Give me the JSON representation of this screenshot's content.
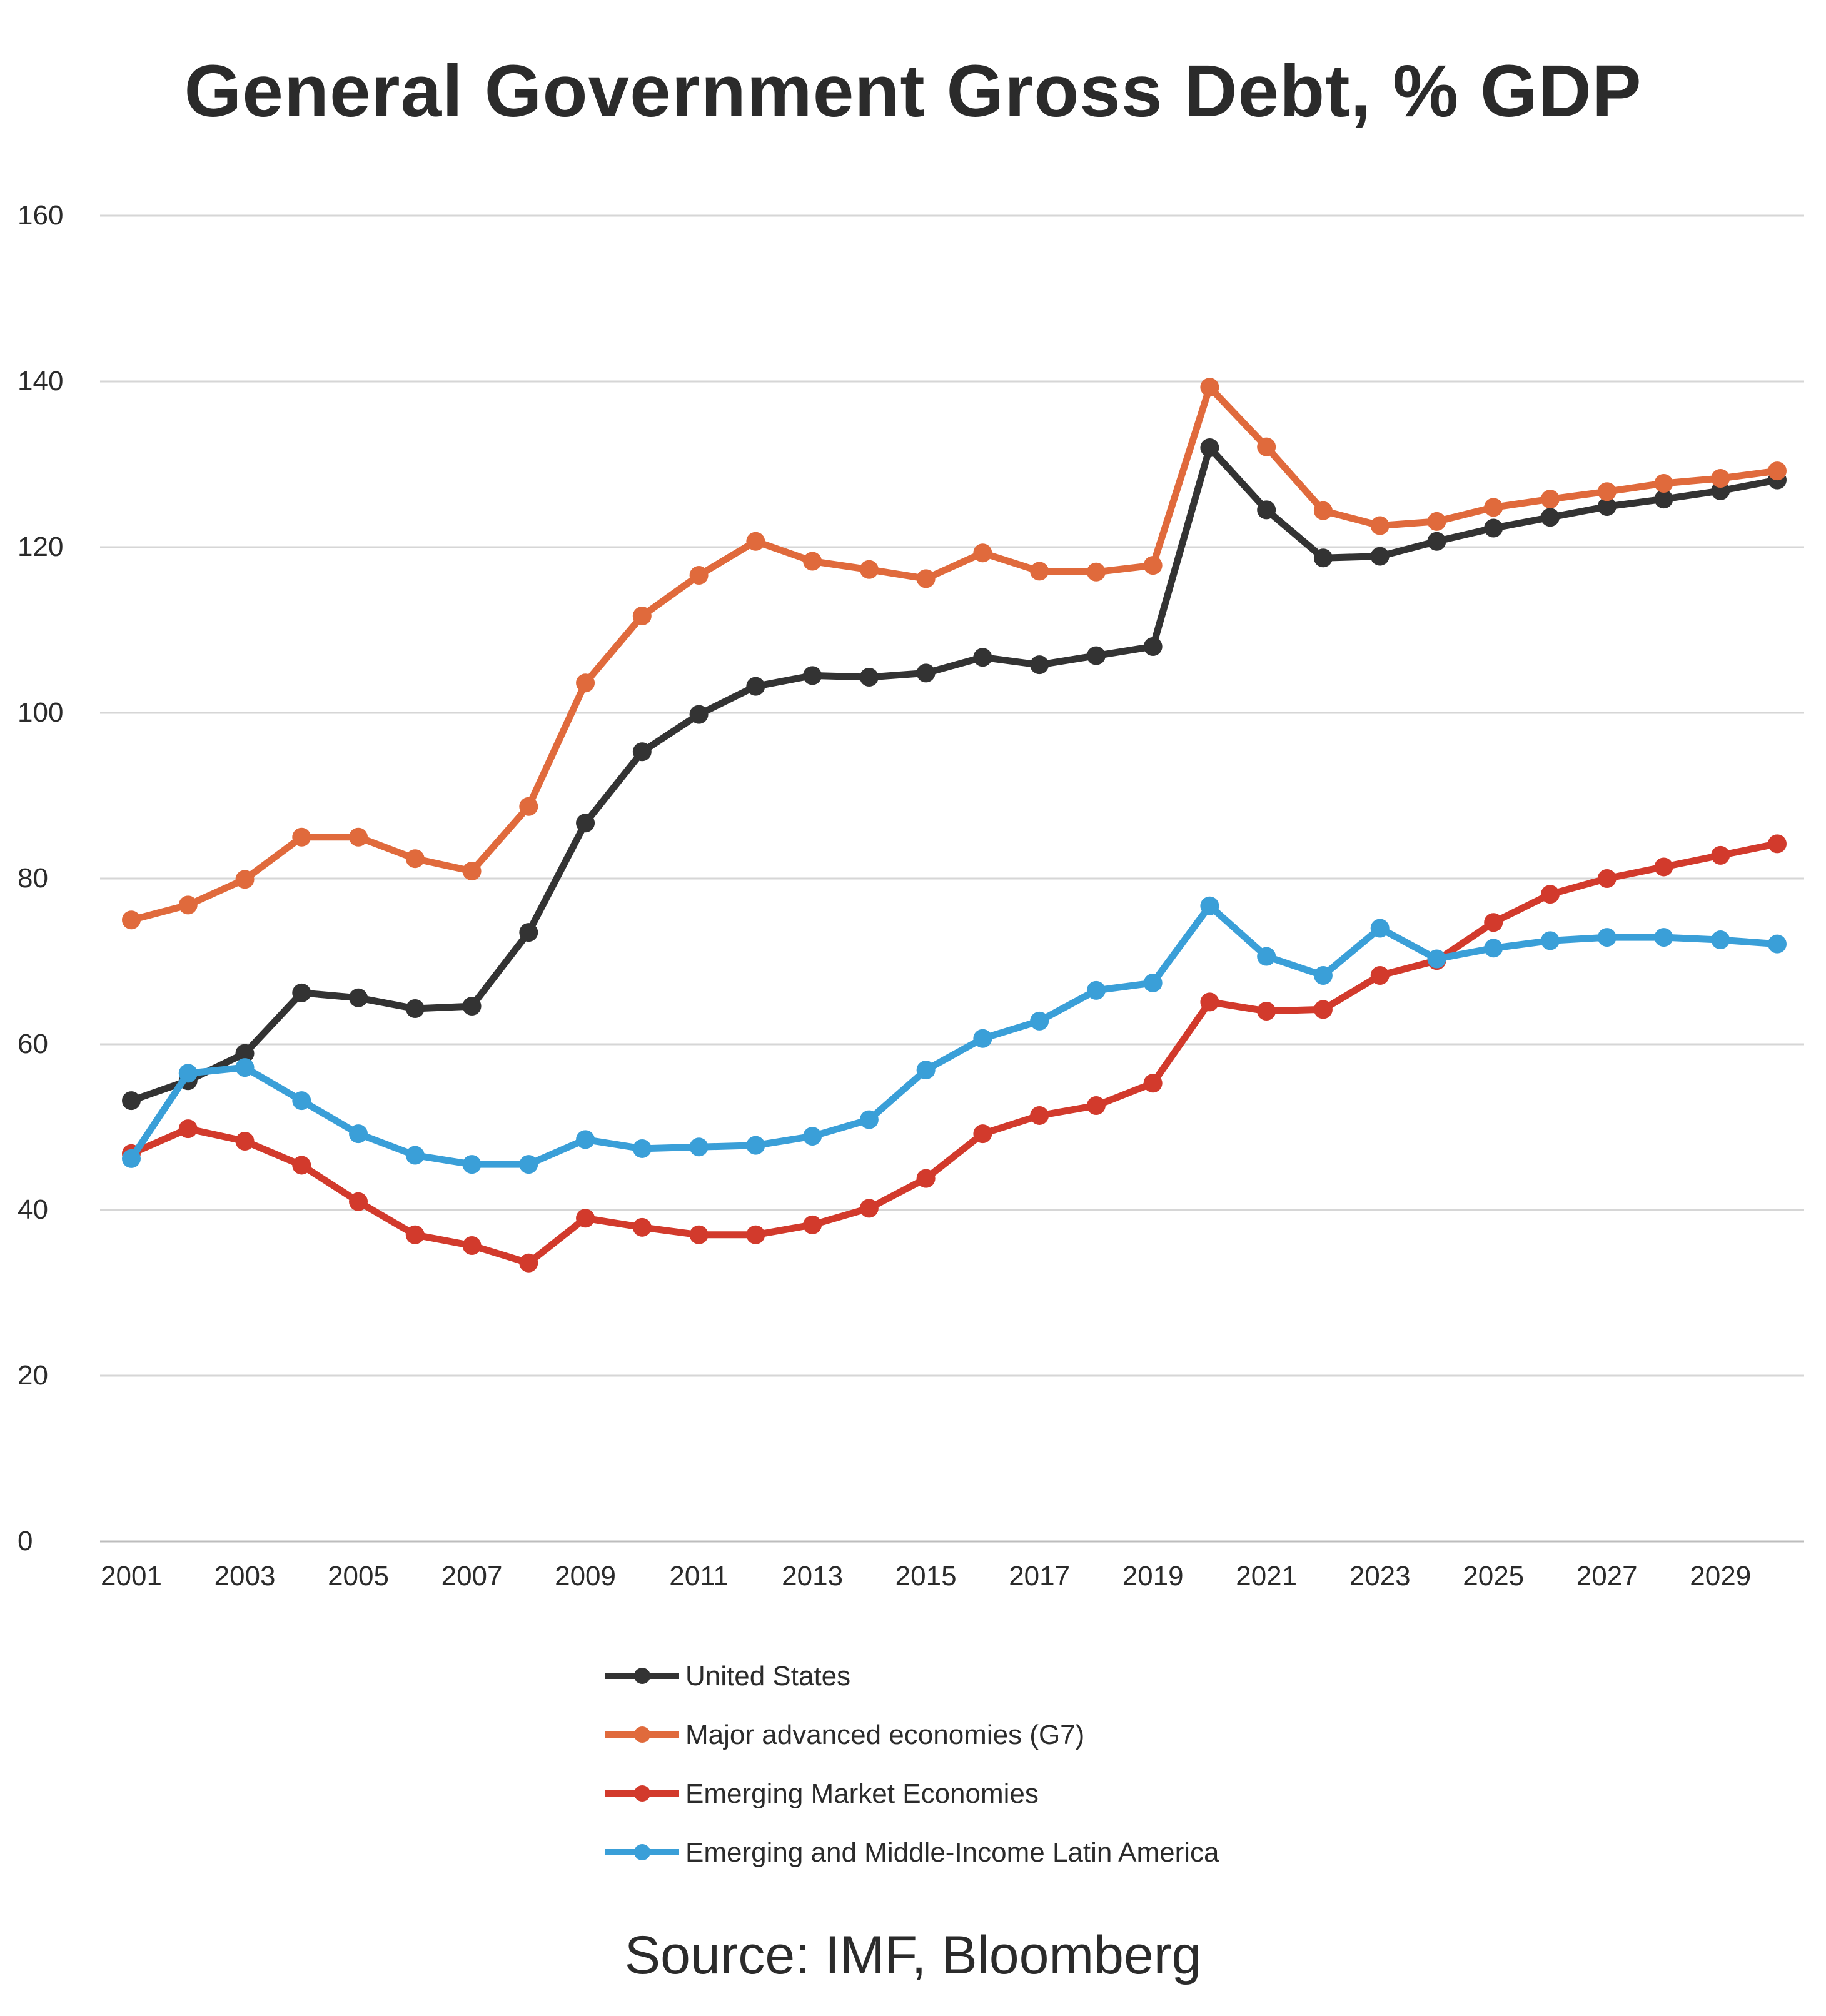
{
  "page": {
    "title": "General Government Gross Debt, % GDP",
    "source": "Source: IMF, Bloomberg"
  },
  "chart_data": {
    "type": "line",
    "title": "General Government Gross Debt, % GDP",
    "xlabel": "",
    "ylabel": "",
    "ylim": [
      0,
      160
    ],
    "yticks": [
      0,
      20,
      40,
      60,
      80,
      100,
      120,
      140,
      160
    ],
    "xtick_labels": [
      "2001",
      "2003",
      "2005",
      "2007",
      "2009",
      "2011",
      "2013",
      "2015",
      "2017",
      "2019",
      "2021",
      "2023",
      "2025",
      "2027",
      "2029"
    ],
    "grid": true,
    "legend_position": "bottom",
    "x": [
      2001,
      2002,
      2003,
      2004,
      2005,
      2006,
      2007,
      2008,
      2009,
      2010,
      2011,
      2012,
      2013,
      2014,
      2015,
      2016,
      2017,
      2018,
      2019,
      2020,
      2021,
      2022,
      2023,
      2024,
      2025,
      2026,
      2027,
      2028,
      2029,
      2030
    ],
    "series": [
      {
        "name": "United States",
        "color": "#333333",
        "values": [
          53.2,
          55.6,
          58.9,
          66.2,
          65.6,
          64.3,
          64.6,
          73.5,
          86.7,
          95.3,
          99.8,
          103.2,
          104.5,
          104.3,
          104.8,
          106.7,
          105.8,
          106.9,
          108.0,
          132.0,
          124.5,
          118.7,
          118.9,
          120.7,
          122.3,
          123.6,
          124.9,
          125.8,
          126.8,
          128.1
        ]
      },
      {
        "name": "Major advanced economies (G7)",
        "color": "#e06a3c",
        "values": [
          75.0,
          76.8,
          79.9,
          85.0,
          85.0,
          82.4,
          80.9,
          88.7,
          103.6,
          111.7,
          116.6,
          120.7,
          118.3,
          117.3,
          116.2,
          119.3,
          117.1,
          117.0,
          117.8,
          139.3,
          132.1,
          124.4,
          122.6,
          123.1,
          124.8,
          125.8,
          126.7,
          127.7,
          128.3,
          129.2
        ]
      },
      {
        "name": "Emerging Market Economies",
        "color": "#d23a2c",
        "values": [
          46.8,
          49.8,
          48.3,
          45.4,
          41.0,
          37.0,
          35.7,
          33.6,
          39.0,
          37.9,
          37.0,
          37.0,
          38.2,
          40.2,
          43.8,
          49.2,
          51.4,
          52.6,
          55.3,
          65.1,
          64.0,
          64.2,
          68.3,
          70.1,
          74.7,
          78.1,
          80.0,
          81.4,
          82.8,
          84.2
        ]
      },
      {
        "name": "Emerging and Middle-Income Latin America",
        "color": "#3a9fd8",
        "values": [
          46.2,
          56.5,
          57.2,
          53.2,
          49.2,
          46.6,
          45.5,
          45.5,
          48.5,
          47.4,
          47.6,
          47.8,
          48.9,
          50.9,
          56.9,
          60.7,
          62.8,
          66.5,
          67.4,
          76.7,
          70.6,
          68.3,
          74.0,
          70.3,
          71.6,
          72.5,
          72.9,
          72.9,
          72.6,
          72.1
        ]
      }
    ]
  }
}
